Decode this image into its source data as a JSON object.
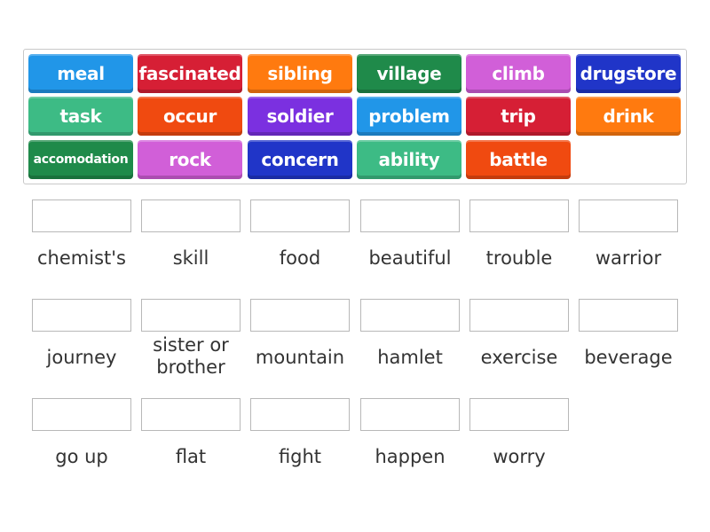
{
  "tiles": [
    {
      "text": "meal",
      "color": "#2196e8"
    },
    {
      "text": "fascinated",
      "color": "#d61f35"
    },
    {
      "text": "sibling",
      "color": "#ff7a0f"
    },
    {
      "text": "village",
      "color": "#1f8a4a"
    },
    {
      "text": "climb",
      "color": "#d15fd8"
    },
    {
      "text": "drugstore",
      "color": "#2035c8"
    },
    {
      "text": "task",
      "color": "#3dbb85"
    },
    {
      "text": "occur",
      "color": "#f04a10"
    },
    {
      "text": "soldier",
      "color": "#7b30e0"
    },
    {
      "text": "problem",
      "color": "#2196e8"
    },
    {
      "text": "trip",
      "color": "#d61f35"
    },
    {
      "text": "drink",
      "color": "#ff7a0f"
    },
    {
      "text": "accomodation",
      "color": "#1f8a4a"
    },
    {
      "text": "rock",
      "color": "#d15fd8"
    },
    {
      "text": "concern",
      "color": "#2035c8"
    },
    {
      "text": "ability",
      "color": "#3dbb85"
    },
    {
      "text": "battle",
      "color": "#f04a10"
    }
  ],
  "targets": [
    "chemist's",
    "skill",
    "food",
    "beautiful",
    "trouble",
    "warrior",
    "journey",
    "sister or brother",
    "mountain",
    "hamlet",
    "exercise",
    "beverage",
    "go up",
    "flat",
    "fight",
    "happen",
    "worry"
  ]
}
